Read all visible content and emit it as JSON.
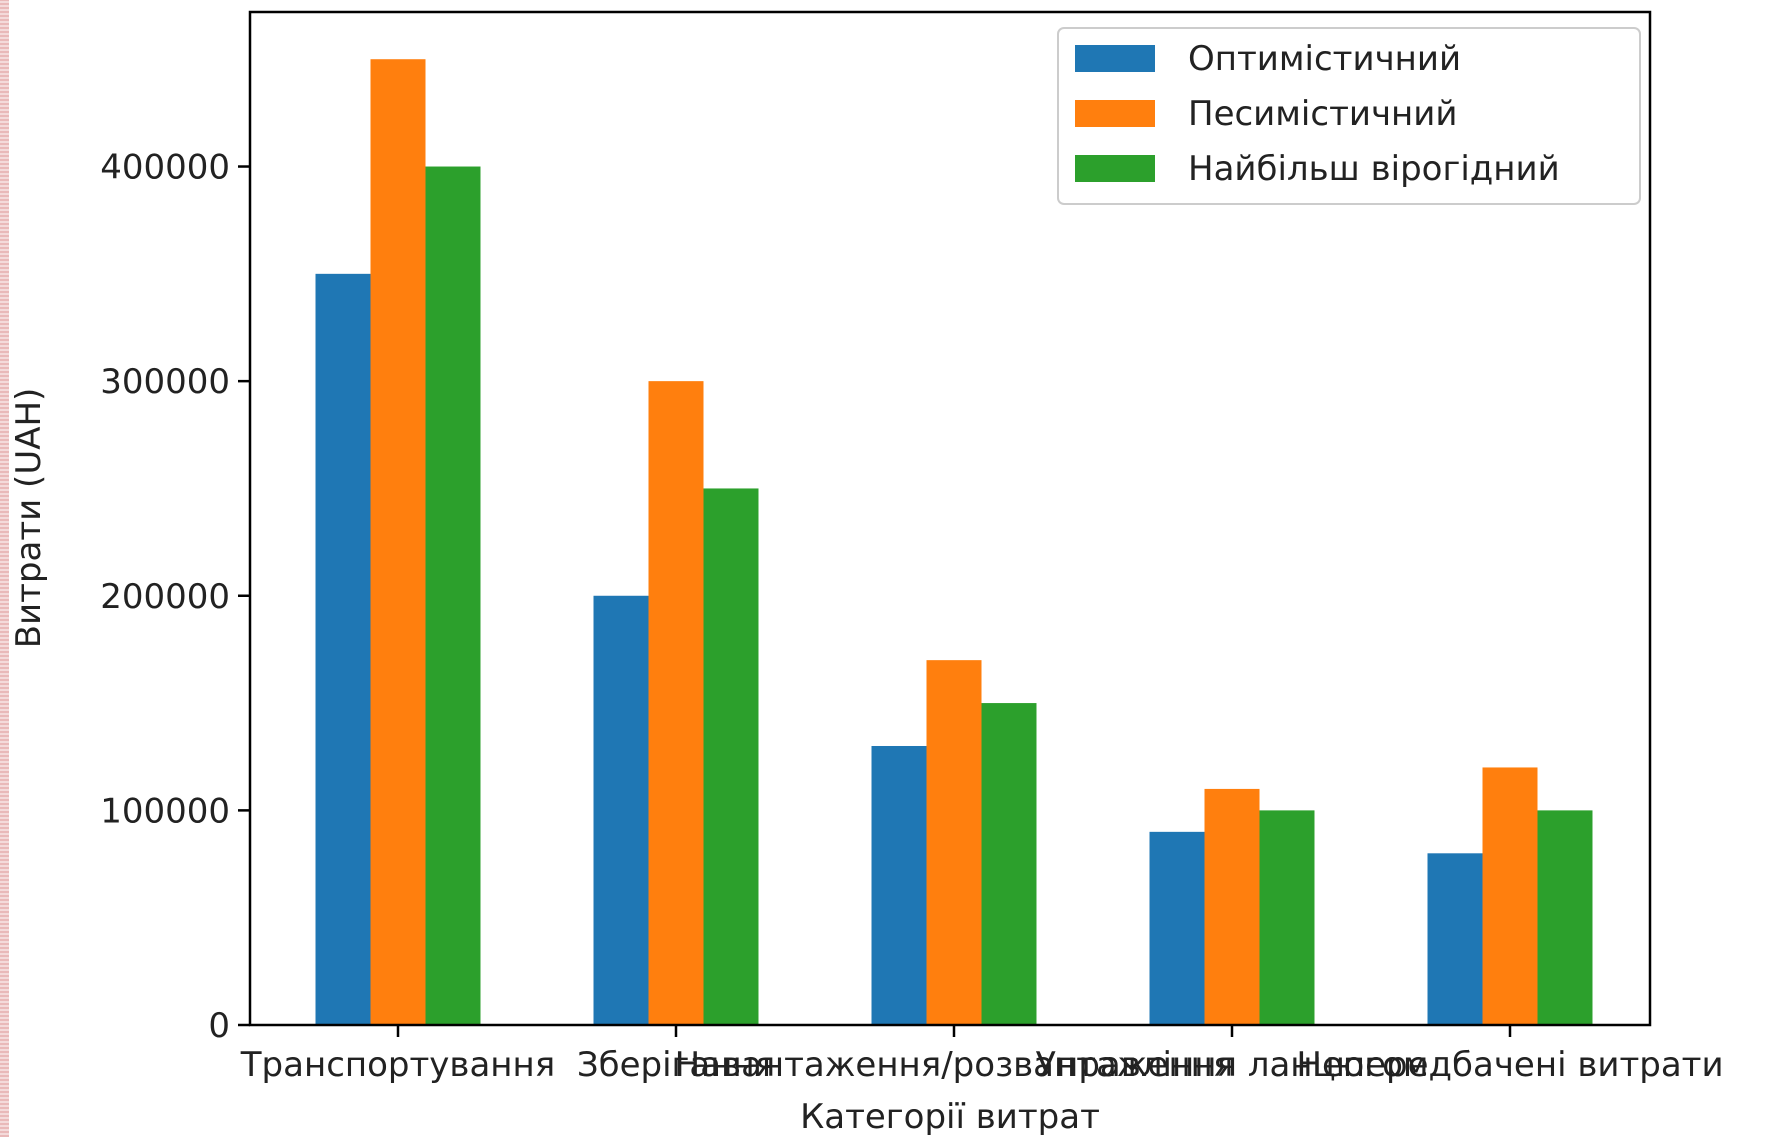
{
  "chart_data": {
    "type": "bar",
    "xlabel": "Категорії витрат",
    "ylabel": "Витрати (UAH)",
    "categories": [
      "Транспортування",
      "Зберігання",
      "Навантаження/розвантаження",
      "Управління ланцюгом",
      "Непередбачені витрати"
    ],
    "series": [
      {
        "name": "Оптимістичний",
        "color": "#1f77b4",
        "values": [
          350000,
          200000,
          130000,
          90000,
          80000
        ]
      },
      {
        "name": "Песимістичний",
        "color": "#ff7f0e",
        "values": [
          450000,
          300000,
          170000,
          110000,
          120000
        ]
      },
      {
        "name": "Найбільш вірогідний",
        "color": "#2ca02c",
        "values": [
          400000,
          250000,
          150000,
          100000,
          100000
        ]
      }
    ],
    "ylim": [
      0,
      472000
    ],
    "yticks": [
      0,
      100000,
      200000,
      300000,
      400000
    ],
    "legend": "top-right",
    "grid": false
  }
}
